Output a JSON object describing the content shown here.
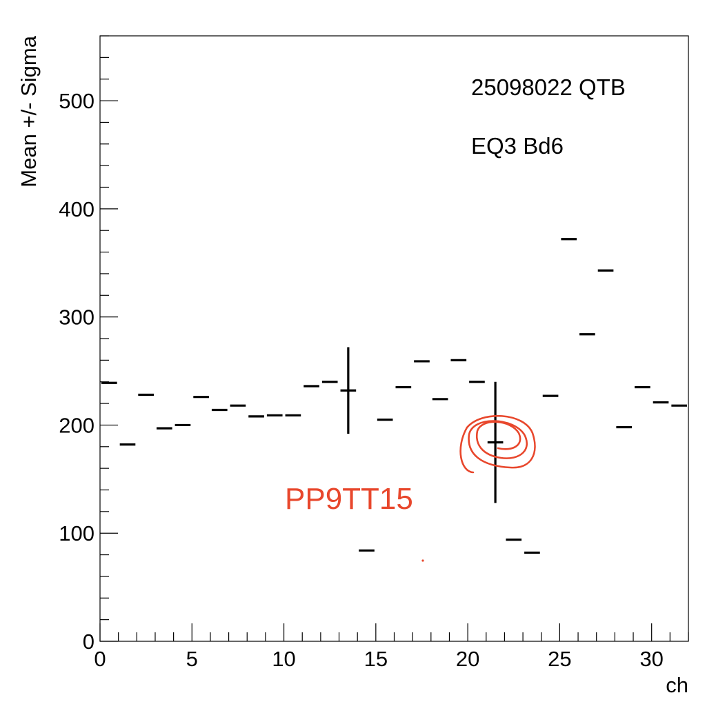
{
  "chart_data": {
    "type": "scatter",
    "title": "",
    "xlabel": "ch",
    "ylabel": "Mean +/- Sigma",
    "xlim": [
      0,
      32
    ],
    "ylim": [
      0,
      560
    ],
    "x_ticks": [
      0,
      5,
      10,
      15,
      20,
      25,
      30
    ],
    "x_tick_labels": [
      "0",
      "5",
      "10",
      "15",
      "20",
      "25",
      "30"
    ],
    "y_ticks": [
      0,
      100,
      200,
      300,
      400,
      500
    ],
    "y_tick_labels": [
      "0",
      "100",
      "200",
      "300",
      "400",
      "500"
    ],
    "grid": false,
    "legend": "none",
    "annotations": [
      "25098022 QTB",
      "EQ3 Bd6"
    ],
    "handwritten_note": "PP9TT15",
    "series": [
      {
        "bin_width": 1,
        "x": [
          0.5,
          1.5,
          2.5,
          3.5,
          4.5,
          5.5,
          6.5,
          7.5,
          8.5,
          9.5,
          10.5,
          11.5,
          12.5,
          13.5,
          14.5,
          15.5,
          16.5,
          17.5,
          18.5,
          19.5,
          20.5,
          21.5,
          22.5,
          23.5,
          24.5,
          25.5,
          26.5,
          27.5,
          28.5,
          29.5,
          30.5,
          31.5
        ],
        "y": [
          239,
          182,
          228,
          197,
          200,
          226,
          214,
          218,
          208,
          209,
          209,
          236,
          240,
          232,
          84,
          205,
          235,
          259,
          224,
          260,
          240,
          184,
          94,
          82,
          227,
          372,
          284,
          343,
          198,
          235,
          221,
          218
        ],
        "err": [
          0,
          0,
          0,
          0,
          0,
          0,
          0,
          0,
          0,
          0,
          0,
          0,
          0,
          40,
          0,
          0,
          0,
          0,
          0,
          0,
          0,
          56,
          0,
          0,
          0,
          0,
          0,
          0,
          0,
          0,
          0,
          0
        ]
      }
    ],
    "colors": {
      "marker": "#000000",
      "annotation": "#e8472c"
    }
  }
}
